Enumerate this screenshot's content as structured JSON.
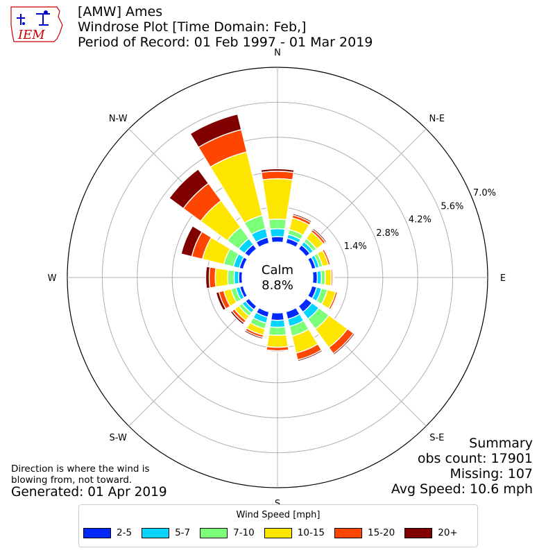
{
  "header": {
    "title": "[AMW] Ames",
    "subtitle": "Windrose Plot [Time Domain: Feb,]",
    "period": "Period of Record: 01 Feb 1997 - 01 Mar 2019"
  },
  "logo": {
    "text": "IEM",
    "icon": "iowa-state-outline-logo"
  },
  "chart_data": {
    "type": "windrose",
    "directions": [
      "N",
      "NNE",
      "NE",
      "ENE",
      "E",
      "ESE",
      "SE",
      "SSE",
      "S",
      "SSW",
      "SW",
      "WSW",
      "W",
      "WNW",
      "NW",
      "NNW"
    ],
    "compass_labels": [
      "N",
      "N-E",
      "E",
      "S-E",
      "S",
      "S-W",
      "W",
      "N-W"
    ],
    "radial_unit": "%",
    "radial_ticks": [
      1.4,
      2.8,
      4.2,
      5.6,
      7.0
    ],
    "radial_tick_labels": [
      "1.4%",
      "2.8%",
      "4.2%",
      "5.6%",
      "7.0%"
    ],
    "calm_label": "Calm",
    "calm_value": "8.8%",
    "legend_title": "Wind Speed [mph]",
    "speed_bins": [
      "2-5",
      "5-7",
      "7-10",
      "10-15",
      "15-20",
      "20+"
    ],
    "colors": [
      "#0028ff",
      "#00d4ff",
      "#7cff79",
      "#ffe600",
      "#ff4600",
      "#800000"
    ],
    "series": [
      {
        "name": "2-5",
        "values": [
          0.22,
          0.2,
          0.2,
          0.16,
          0.18,
          0.2,
          0.3,
          0.3,
          0.3,
          0.22,
          0.18,
          0.14,
          0.14,
          0.16,
          0.22,
          0.24
        ]
      },
      {
        "name": "5-7",
        "values": [
          0.32,
          0.16,
          0.16,
          0.14,
          0.16,
          0.2,
          0.34,
          0.3,
          0.28,
          0.24,
          0.16,
          0.16,
          0.18,
          0.24,
          0.3,
          0.36
        ]
      },
      {
        "name": "7-10",
        "values": [
          0.38,
          0.2,
          0.16,
          0.14,
          0.16,
          0.24,
          0.5,
          0.4,
          0.32,
          0.24,
          0.16,
          0.2,
          0.26,
          0.4,
          0.56,
          0.54
        ]
      },
      {
        "name": "10-15",
        "values": [
          1.62,
          0.48,
          0.34,
          0.24,
          0.24,
          0.34,
          0.92,
          0.7,
          0.48,
          0.26,
          0.22,
          0.3,
          0.5,
          0.88,
          1.32,
          2.62
        ]
      },
      {
        "name": "15-20",
        "values": [
          0.3,
          0.12,
          0.1,
          0.08,
          0.06,
          0.08,
          0.3,
          0.28,
          0.14,
          0.1,
          0.12,
          0.2,
          0.24,
          0.44,
          0.86,
          0.92
        ]
      },
      {
        "name": "20+",
        "values": [
          0.1,
          0.06,
          0.06,
          0.04,
          0.04,
          0.04,
          0.06,
          0.06,
          0.04,
          0.06,
          0.08,
          0.12,
          0.14,
          0.44,
          0.7,
          0.64
        ]
      }
    ]
  },
  "notes": {
    "direction_note": "Direction is where the wind is blowing from, not toward.",
    "generated": "Generated: 01 Apr 2019"
  },
  "summary": {
    "title": "Summary",
    "obs_count": "obs count: 17901",
    "missing": "Missing: 107",
    "avg_speed": "Avg Speed: 10.6 mph"
  }
}
